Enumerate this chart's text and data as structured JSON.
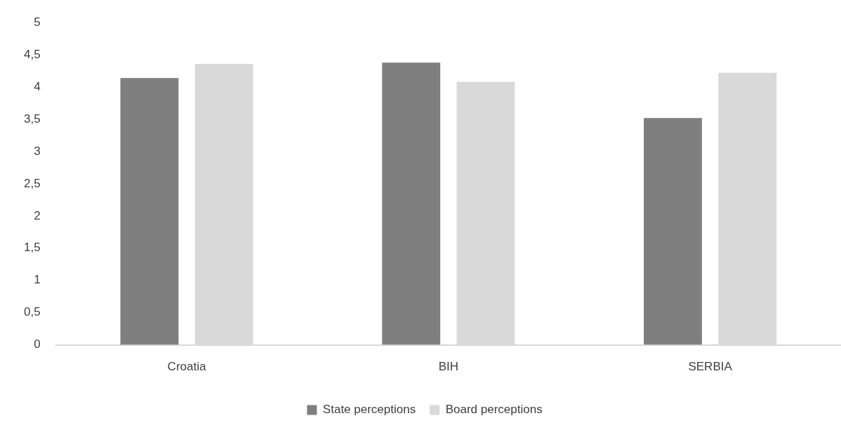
{
  "chart_data": {
    "type": "bar",
    "categories": [
      "Croatia",
      "BIH",
      "SERBIA"
    ],
    "series": [
      {
        "name": "State perceptions",
        "color": "#7f7f7f",
        "values": [
          4.14,
          4.38,
          3.52
        ]
      },
      {
        "name": "Board perceptions",
        "color": "#d9d9d9",
        "values": [
          4.36,
          4.08,
          4.22
        ]
      }
    ],
    "ylim": [
      0,
      5
    ],
    "yticks": [
      0,
      {
        "value": 0.5,
        "label": "0,5"
      },
      1,
      {
        "value": 1.5,
        "label": "1,5"
      },
      2,
      {
        "value": 2.5,
        "label": "2,5"
      },
      3,
      {
        "value": 3.5,
        "label": "3,5"
      },
      4,
      {
        "value": 4.5,
        "label": "4,5"
      },
      5
    ],
    "legend": "bottom"
  }
}
